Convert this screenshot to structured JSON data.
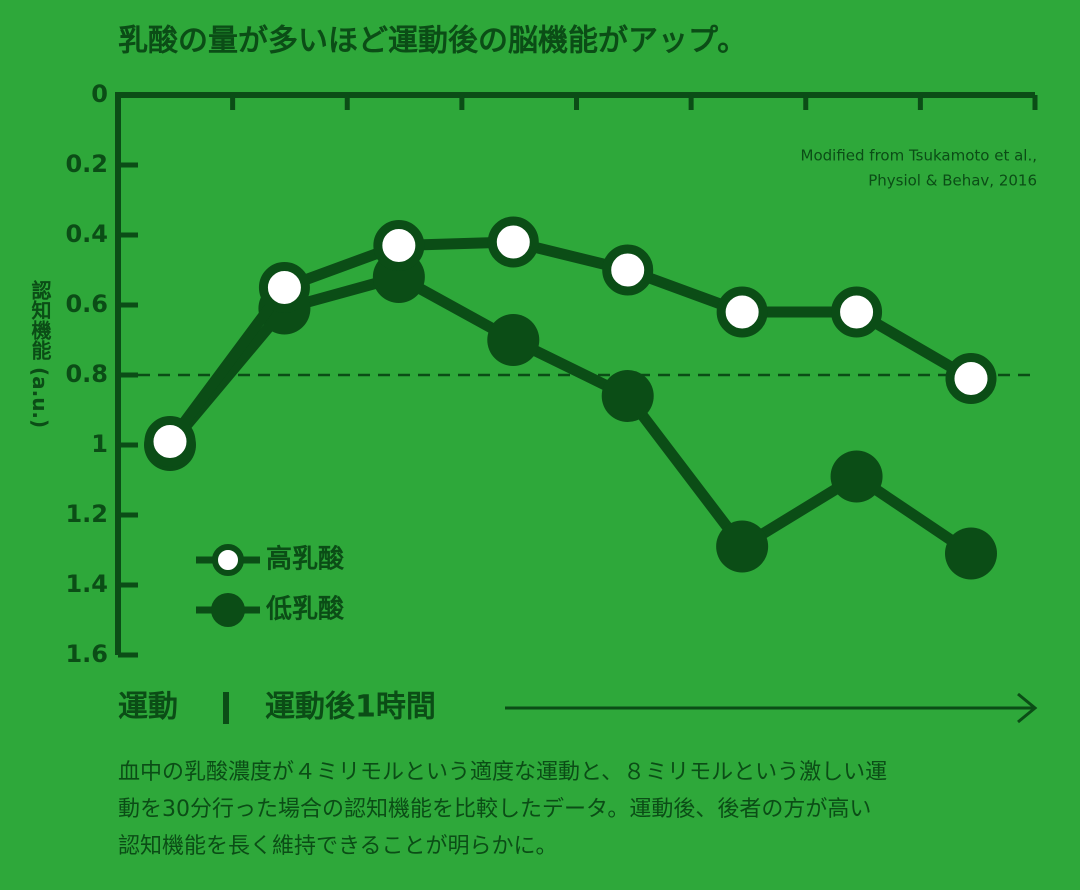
{
  "chart_data": {
    "type": "line",
    "title": "乳酸の量が多いほど運動後の脳機能がアップ。",
    "y_label": "認知機能 (a.u.)",
    "source_lines": [
      "Modified from Tsukamoto et al.,",
      "Physiol & Behav, 2016"
    ],
    "x_annotations": [
      "運動",
      "運動後1時間"
    ],
    "caption_lines": [
      "血中の乳酸濃度が４ミリモルという適度な運動と、８ミリモルという激しい運",
      "動を30分行った場合の認知機能を比較したデータ。運動後、後者の方が高い",
      "認知機能を長く維持できることが明らかに。"
    ],
    "categories": [
      null,
      null,
      null,
      null,
      null,
      null,
      null,
      null
    ],
    "series": [
      {
        "name": "低乳酸",
        "color": "#0b4d16",
        "values": [
          1.0,
          0.61,
          0.52,
          0.7,
          0.86,
          1.29,
          1.09,
          1.31
        ]
      },
      {
        "name": "高乳酸",
        "color": "#ffffff",
        "values": [
          0.99,
          0.55,
          0.43,
          0.42,
          0.5,
          0.62,
          0.62,
          0.81
        ]
      }
    ],
    "ylim": [
      0,
      1.6
    ],
    "yticks": [
      0,
      0.2,
      0.4,
      0.6,
      0.8,
      1,
      1.2,
      1.4,
      1.6
    ],
    "y_inverted": true,
    "reference_line": 0.8
  }
}
